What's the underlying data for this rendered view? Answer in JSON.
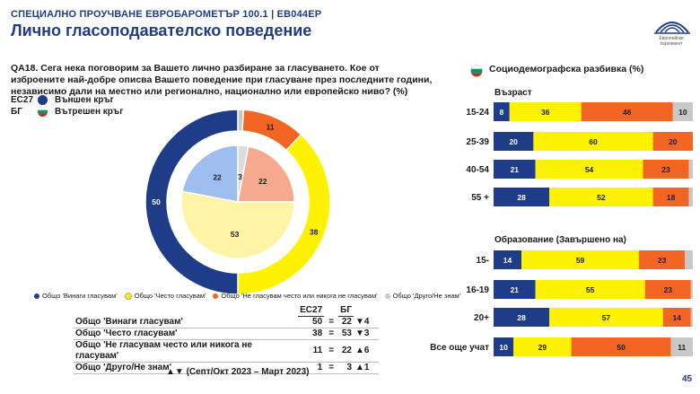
{
  "header": {
    "eyebrow": "СПЕЦИАЛНО ПРОУЧВАНЕ ЕВРОБАРОМЕТЪР 100.1 | EB044EP",
    "title": "Лично гласоподавателско поведение",
    "logo_text": "Европейски парламент"
  },
  "question": "QA18. Сега нека поговорим за Вашето лично разбиране за гласуването. Кое от изброените най-добре описва Вашето поведение при гласуване през последните години, независимо дали на местно или регионално, национално или европейско ниво? (%)",
  "rings_legend": [
    {
      "code": "ЕС27",
      "label": "Външен кръг",
      "icon": "blue-dot-icon"
    },
    {
      "code": "БГ",
      "label": "Вътрешен кръг",
      "icon": "bulgarian-flag-icon"
    }
  ],
  "colors": {
    "always": "#1f3c88",
    "often": "#fff200",
    "rarely": "#f26522",
    "other": "#c8c8c8",
    "inner_always": "#9fbef0",
    "inner_often": "#fff3a6",
    "inner_rarely": "#f6a98c",
    "inner_other": "#dcdcdc"
  },
  "chart_data": [
    {
      "type": "pie",
      "variant": "double-donut",
      "categories": [
        "Общо 'Винаги гласувам'",
        "Общо 'Често гласувам'",
        "Общо 'Не гласувам често или никога не гласувам'",
        "Общо 'Друго/Не знам'"
      ],
      "series": [
        {
          "name": "Външен кръг",
          "values": [
            50,
            38,
            11,
            1
          ]
        },
        {
          "name": "Вътрешен кръг",
          "values": [
            22,
            53,
            22,
            3
          ]
        }
      ]
    },
    {
      "type": "bar",
      "variant": "stacked-horizontal",
      "section_title": "Възраст",
      "categories": [
        "15-24",
        "25-39",
        "40-54",
        "55 +"
      ],
      "series": [
        {
          "name": "Общо 'Винаги гласувам'",
          "values": [
            8,
            20,
            21,
            28
          ]
        },
        {
          "name": "Общо 'Често гласувам'",
          "values": [
            36,
            60,
            54,
            52
          ]
        },
        {
          "name": "Общо 'Не гласувам често или никога не гласувам'",
          "values": [
            46,
            20,
            23,
            18
          ]
        },
        {
          "name": "Общо 'Друго/Не знам'",
          "values": [
            10,
            0,
            2,
            2
          ]
        }
      ]
    },
    {
      "type": "bar",
      "variant": "stacked-horizontal",
      "section_title": "Образование (Завършено на)",
      "categories": [
        "15-",
        "16-19",
        "20+",
        "Все още учат"
      ],
      "series": [
        {
          "name": "Общо 'Винаги гласувам'",
          "values": [
            14,
            21,
            28,
            10
          ]
        },
        {
          "name": "Общо 'Често гласувам'",
          "values": [
            59,
            55,
            57,
            29
          ]
        },
        {
          "name": "Общо 'Не гласувам често или никога не гласувам'",
          "values": [
            23,
            23,
            14,
            50
          ]
        },
        {
          "name": "Общо 'Друго/Не знам'",
          "values": [
            4,
            1,
            1,
            11
          ]
        }
      ]
    }
  ],
  "chart_legend": [
    {
      "label": "Общо 'Винаги гласувам'",
      "color": "#1f3c88"
    },
    {
      "label": "Общо 'Често гласувам'",
      "color": "#fff200"
    },
    {
      "label": "Общо 'Не гласувам често или никога не гласувам'",
      "color": "#f26522"
    },
    {
      "label": "Общо 'Друго/Не знам'",
      "color": "#c8c8c8"
    }
  ],
  "table": {
    "headers": [
      "ЕС27",
      "БГ"
    ],
    "rows": [
      {
        "label": "Общо 'Винаги гласувам'",
        "eu": "50",
        "sep": "=",
        "bg": "22",
        "change": "▼4"
      },
      {
        "label": "Общо 'Често гласувам'",
        "eu": "38",
        "sep": "=",
        "bg": "53",
        "change": "▼3"
      },
      {
        "label": "Общо 'Не гласувам често или никога не гласувам'",
        "eu": "11",
        "sep": "=",
        "bg": "22",
        "change": "▲6"
      },
      {
        "label": "Общо 'Друго/Не знам'",
        "eu": "1",
        "sep": "=",
        "bg": "3",
        "change": "▲1"
      }
    ]
  },
  "period": "▲▼ (Септ/Окт 2023 – Март 2023)",
  "socio": {
    "title": "Социодемографска разбивка (%)",
    "age_title": "Възраст",
    "edu_title": "Образование (Завършено на)"
  },
  "page_number": "45"
}
